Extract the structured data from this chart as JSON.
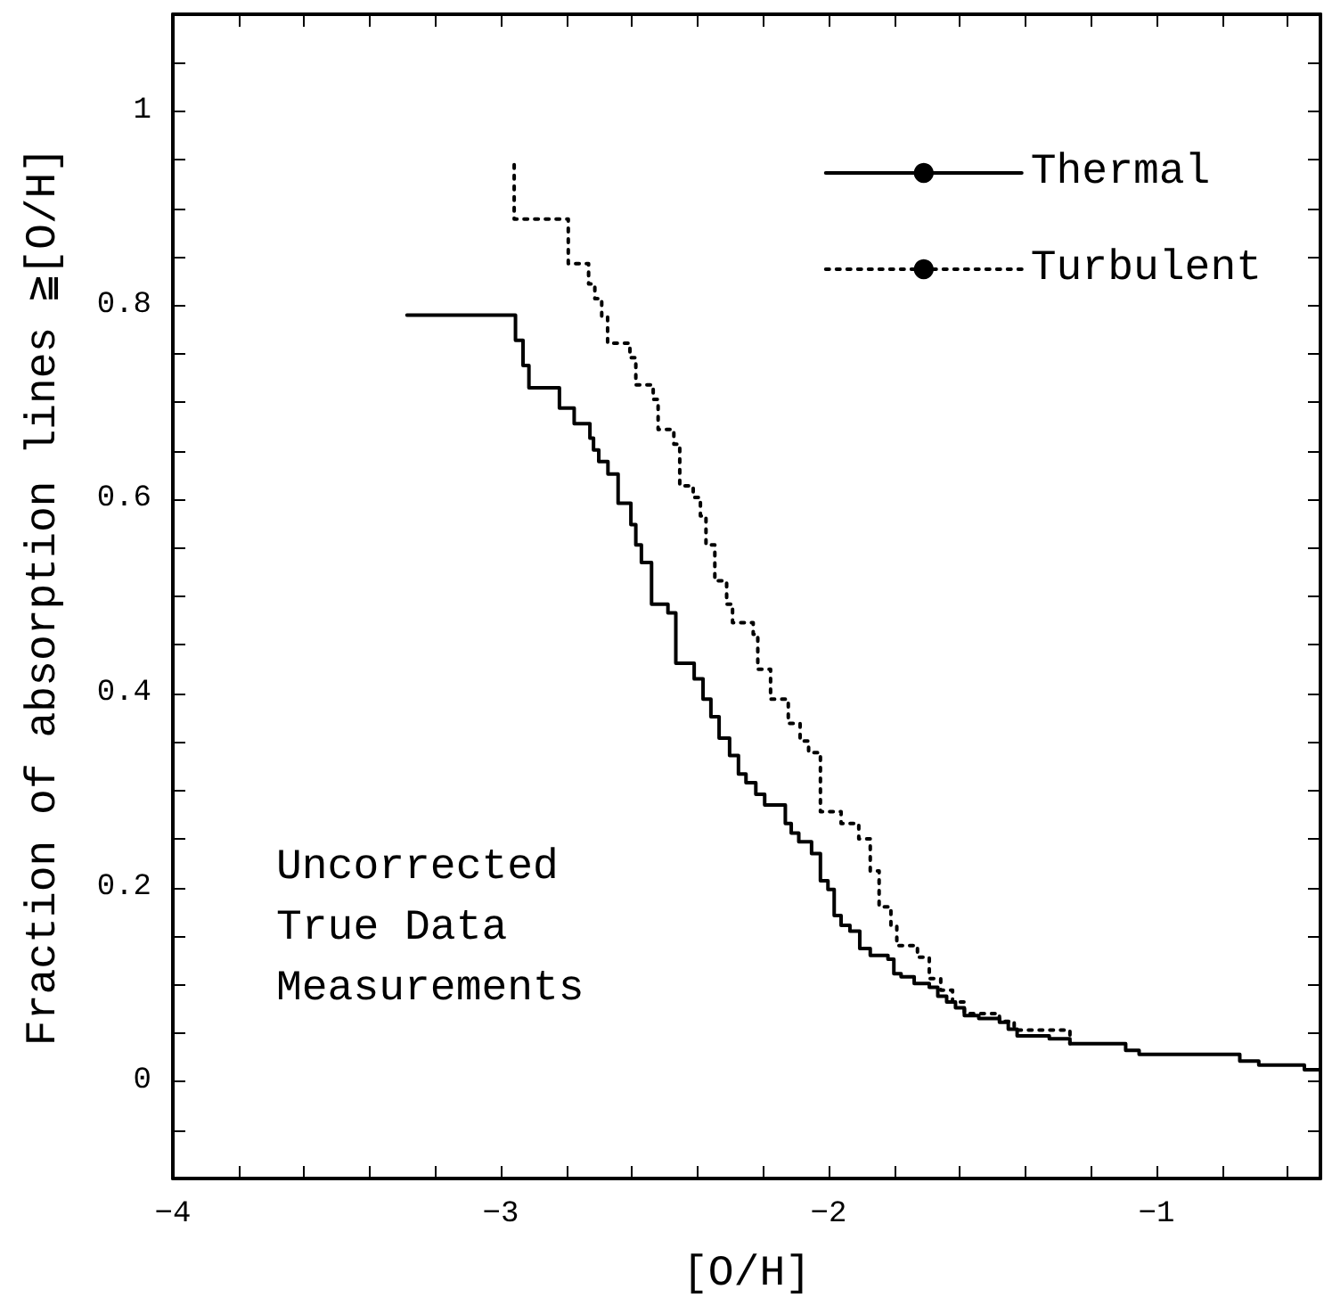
{
  "chart_data": {
    "type": "step",
    "xlabel": "[O/H]",
    "ylabel": "Fraction of absorption lines ≧[O/H]",
    "annotations": [
      "Uncorrected\nTrue Data\nMeasurements"
    ],
    "xlim": [
      -4,
      -0.5
    ],
    "ylim": [
      -0.1,
      1.1
    ],
    "xticks": [
      {
        "value": -4,
        "label": "−4"
      },
      {
        "value": -3.8,
        "label": null
      },
      {
        "value": -3.6,
        "label": null
      },
      {
        "value": -3.4,
        "label": null
      },
      {
        "value": -3.2,
        "label": null
      },
      {
        "value": -3,
        "label": "−3"
      },
      {
        "value": -2.8,
        "label": null
      },
      {
        "value": -2.6,
        "label": null
      },
      {
        "value": -2.4,
        "label": null
      },
      {
        "value": -2.2,
        "label": null
      },
      {
        "value": -2,
        "label": "−2"
      },
      {
        "value": -1.8,
        "label": null
      },
      {
        "value": -1.6,
        "label": null
      },
      {
        "value": -1.4,
        "label": null
      },
      {
        "value": -1.2,
        "label": null
      },
      {
        "value": -1,
        "label": "−1"
      },
      {
        "value": -0.8,
        "label": null
      },
      {
        "value": -0.6,
        "label": null
      }
    ],
    "yticks": [
      {
        "value": -0.05,
        "label": null
      },
      0,
      {
        "value": 0.05,
        "label": null
      },
      {
        "value": 0.1,
        "label": null
      },
      {
        "value": 0.15,
        "label": null
      },
      0.2,
      {
        "value": 0.25,
        "label": null
      },
      {
        "value": 0.3,
        "label": null
      },
      {
        "value": 0.35,
        "label": null
      },
      0.4,
      {
        "value": 0.45,
        "label": null
      },
      {
        "value": 0.5,
        "label": null
      },
      {
        "value": 0.55,
        "label": null
      },
      0.6,
      {
        "value": 0.65,
        "label": null
      },
      {
        "value": 0.7,
        "label": null
      },
      {
        "value": 0.75,
        "label": null
      },
      0.8,
      {
        "value": 0.85,
        "label": null
      },
      {
        "value": 0.9,
        "label": null
      },
      {
        "value": 0.95,
        "label": null
      },
      1,
      {
        "value": 1.05,
        "label": null
      }
    ],
    "legend": "top right",
    "grid": false,
    "marker": "none",
    "series": [
      {
        "name": "Thermal",
        "color": "#000000",
        "line_style": "solid",
        "x": [
          -3.286,
          -2.955,
          -2.932,
          -2.914,
          -2.821,
          -2.776,
          -2.728,
          -2.717,
          -2.701,
          -2.673,
          -2.642,
          -2.603,
          -2.588,
          -2.571,
          -2.54,
          -2.49,
          -2.466,
          -2.41,
          -2.383,
          -2.359,
          -2.334,
          -2.302,
          -2.275,
          -2.252,
          -2.222,
          -2.195,
          -2.132,
          -2.114,
          -2.091,
          -2.052,
          -2.025,
          -2.002,
          -1.983,
          -1.962,
          -1.935,
          -1.905,
          -1.873,
          -1.819,
          -1.801,
          -1.779,
          -1.739,
          -1.693,
          -1.667,
          -1.64,
          -1.613,
          -1.586,
          -1.542,
          -1.479,
          -1.452,
          -1.425,
          -1.327,
          -1.264,
          -1.094,
          -1.053,
          -0.746,
          -0.688,
          -0.549,
          -0.5
        ],
        "values": [
          0.79,
          0.764,
          0.738,
          0.715,
          0.694,
          0.678,
          0.663,
          0.651,
          0.639,
          0.626,
          0.596,
          0.574,
          0.553,
          0.535,
          0.492,
          0.483,
          0.431,
          0.415,
          0.394,
          0.376,
          0.354,
          0.336,
          0.317,
          0.308,
          0.296,
          0.285,
          0.266,
          0.256,
          0.247,
          0.235,
          0.207,
          0.198,
          0.171,
          0.161,
          0.155,
          0.137,
          0.13,
          0.126,
          0.111,
          0.108,
          0.101,
          0.097,
          0.088,
          0.082,
          0.076,
          0.068,
          0.065,
          0.061,
          0.054,
          0.047,
          0.044,
          0.039,
          0.032,
          0.028,
          0.021,
          0.017,
          0.012,
          0.012
        ]
      },
      {
        "name": "Turbulent",
        "color": "#000000",
        "line_style": "dotted",
        "x": [
          -2.959,
          -2.959,
          -2.794,
          -2.732,
          -2.713,
          -2.692,
          -2.674,
          -2.606,
          -2.588,
          -2.535,
          -2.52,
          -2.472,
          -2.454,
          -2.413,
          -2.391,
          -2.374,
          -2.347,
          -2.311,
          -2.293,
          -2.23,
          -2.216,
          -2.177,
          -2.123,
          -2.087,
          -2.061,
          -2.025,
          -1.962,
          -1.908,
          -1.873,
          -1.846,
          -1.81,
          -1.792,
          -1.729,
          -1.693,
          -1.658,
          -1.622,
          -1.586,
          -1.479,
          -1.434,
          -1.264
        ],
        "values": [
          0.945,
          0.889,
          0.843,
          0.822,
          0.807,
          0.789,
          0.761,
          0.746,
          0.718,
          0.703,
          0.672,
          0.657,
          0.614,
          0.602,
          0.583,
          0.553,
          0.516,
          0.492,
          0.473,
          0.461,
          0.425,
          0.394,
          0.369,
          0.351,
          0.339,
          0.278,
          0.266,
          0.25,
          0.217,
          0.18,
          0.161,
          0.14,
          0.128,
          0.106,
          0.094,
          0.082,
          0.07,
          0.062,
          0.053,
          0.039
        ]
      }
    ]
  }
}
